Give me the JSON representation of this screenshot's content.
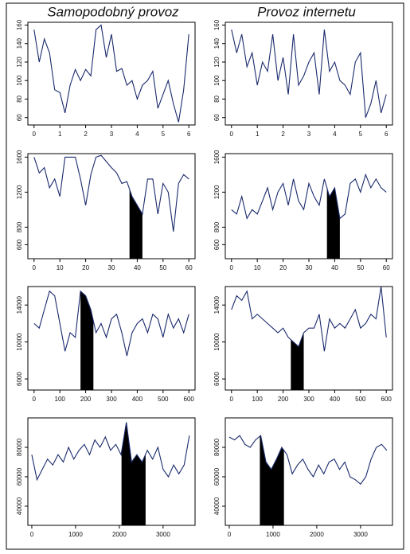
{
  "column_titles": [
    "Samopodobný provoz",
    "Provoz internetu"
  ],
  "chart_data": [
    {
      "type": "line",
      "xlim": [
        -0.24,
        6.24
      ],
      "ylim": [
        52,
        163
      ],
      "xticks": [
        0,
        1,
        2,
        3,
        4,
        5,
        6
      ],
      "yticks": [
        60,
        80,
        100,
        120,
        140,
        160
      ],
      "x": [
        0,
        0.2,
        0.4,
        0.6,
        0.8,
        1,
        1.2,
        1.4,
        1.6,
        1.8,
        2,
        2.2,
        2.4,
        2.6,
        2.8,
        3,
        3.2,
        3.4,
        3.6,
        3.8,
        4,
        4.2,
        4.4,
        4.6,
        4.8,
        5,
        5.2,
        5.4,
        5.6,
        5.8,
        6
      ],
      "values": [
        155,
        120,
        145,
        130,
        90,
        87,
        65,
        95,
        112,
        100,
        112,
        105,
        155,
        160,
        125,
        150,
        110,
        113,
        95,
        100,
        80,
        95,
        100,
        110,
        70,
        85,
        100,
        75,
        55,
        90,
        150
      ],
      "color": "#1a2a6c"
    },
    {
      "type": "line",
      "xlim": [
        -0.24,
        6.24
      ],
      "ylim": [
        52,
        163
      ],
      "xticks": [
        0,
        1,
        2,
        3,
        4,
        5,
        6
      ],
      "yticks": [
        60,
        80,
        100,
        120,
        140,
        160
      ],
      "x": [
        0,
        0.2,
        0.4,
        0.6,
        0.8,
        1,
        1.2,
        1.4,
        1.6,
        1.8,
        2,
        2.2,
        2.4,
        2.6,
        2.8,
        3,
        3.2,
        3.4,
        3.6,
        3.8,
        4,
        4.2,
        4.4,
        4.6,
        4.8,
        5,
        5.2,
        5.4,
        5.6,
        5.8,
        6
      ],
      "values": [
        155,
        130,
        150,
        115,
        130,
        95,
        120,
        110,
        150,
        100,
        125,
        85,
        150,
        95,
        105,
        120,
        130,
        85,
        155,
        110,
        120,
        100,
        95,
        85,
        120,
        130,
        60,
        75,
        100,
        65,
        85
      ],
      "color": "#1a2a6c"
    },
    {
      "type": "line",
      "xlim": [
        -2.4,
        62.4
      ],
      "ylim": [
        440,
        1640
      ],
      "xticks": [
        0,
        10,
        20,
        30,
        40,
        50,
        60
      ],
      "yticks": [
        600,
        800,
        1200,
        1600
      ],
      "highlight": [
        37,
        42
      ],
      "x": [
        0,
        2,
        4,
        6,
        8,
        10,
        12,
        14,
        16,
        18,
        20,
        22,
        24,
        26,
        28,
        30,
        32,
        34,
        36,
        38,
        40,
        42,
        44,
        46,
        48,
        50,
        52,
        54,
        56,
        58,
        60
      ],
      "values": [
        1600,
        1420,
        1480,
        1250,
        1350,
        1150,
        1600,
        1600,
        1600,
        1350,
        1050,
        1400,
        1600,
        1620,
        1550,
        1480,
        1420,
        1300,
        1320,
        1150,
        1050,
        950,
        1350,
        1350,
        950,
        1300,
        1200,
        750,
        1300,
        1400,
        1350
      ],
      "color": "#1a2a6c"
    },
    {
      "type": "line",
      "xlim": [
        -2.4,
        62.4
      ],
      "ylim": [
        440,
        1640
      ],
      "xticks": [
        0,
        10,
        20,
        30,
        40,
        50,
        60
      ],
      "yticks": [
        600,
        800,
        1200,
        1600
      ],
      "highlight": [
        37,
        42
      ],
      "x": [
        0,
        2,
        4,
        6,
        8,
        10,
        12,
        14,
        16,
        18,
        20,
        22,
        24,
        26,
        28,
        30,
        32,
        34,
        36,
        38,
        40,
        42,
        44,
        46,
        48,
        50,
        52,
        54,
        56,
        58,
        60
      ],
      "values": [
        1000,
        950,
        1150,
        900,
        1000,
        950,
        1100,
        1250,
        1000,
        1200,
        1300,
        1050,
        1350,
        1100,
        1000,
        1300,
        1150,
        1050,
        1350,
        1150,
        1250,
        900,
        950,
        1300,
        1350,
        1200,
        1400,
        1250,
        1350,
        1250,
        1200
      ],
      "color": "#1a2a6c"
    },
    {
      "type": "line",
      "xlim": [
        -24,
        624
      ],
      "ylim": [
        4800,
        16000
      ],
      "xticks": [
        0,
        100,
        200,
        300,
        400,
        500,
        600
      ],
      "yticks": [
        6000,
        10000,
        14000
      ],
      "highlight": [
        180,
        230
      ],
      "x": [
        0,
        20,
        40,
        60,
        80,
        100,
        120,
        140,
        160,
        180,
        200,
        220,
        240,
        260,
        280,
        300,
        320,
        340,
        360,
        380,
        400,
        420,
        440,
        460,
        480,
        500,
        520,
        540,
        560,
        580,
        600
      ],
      "values": [
        12000,
        11500,
        13500,
        15500,
        15000,
        12000,
        9000,
        11000,
        10500,
        15500,
        15000,
        13500,
        11000,
        12000,
        10500,
        12500,
        13000,
        11000,
        8500,
        11000,
        12000,
        12500,
        11000,
        13000,
        12500,
        10500,
        13000,
        11500,
        12500,
        11000,
        13000
      ],
      "color": "#1a2a6c"
    },
    {
      "type": "line",
      "xlim": [
        -24,
        624
      ],
      "ylim": [
        4800,
        16000
      ],
      "xticks": [
        0,
        100,
        200,
        300,
        400,
        500,
        600
      ],
      "yticks": [
        6000,
        10000,
        14000
      ],
      "highlight": [
        230,
        280
      ],
      "x": [
        0,
        20,
        40,
        60,
        80,
        100,
        120,
        140,
        160,
        180,
        200,
        220,
        240,
        260,
        280,
        300,
        320,
        340,
        360,
        380,
        400,
        420,
        440,
        460,
        480,
        500,
        520,
        540,
        560,
        580,
        600
      ],
      "values": [
        13500,
        15000,
        14500,
        15500,
        12500,
        13000,
        12500,
        12000,
        11500,
        11000,
        11500,
        10500,
        10000,
        9500,
        11000,
        11500,
        11500,
        13000,
        9000,
        12500,
        11500,
        12000,
        11500,
        12500,
        13500,
        11500,
        12000,
        13000,
        12500,
        16000,
        10500
      ],
      "color": "#1a2a6c"
    },
    {
      "type": "line",
      "xlim": [
        -90,
        3730
      ],
      "ylim": [
        27000,
        100000
      ],
      "xticks": [
        0,
        1000,
        2000,
        3000
      ],
      "yticks": [
        40000,
        60000,
        80000
      ],
      "highlight": [
        2050,
        2600
      ],
      "x": [
        0,
        120,
        240,
        360,
        480,
        600,
        720,
        840,
        960,
        1080,
        1200,
        1320,
        1440,
        1560,
        1680,
        1800,
        1920,
        2040,
        2160,
        2280,
        2400,
        2520,
        2640,
        2760,
        2880,
        3000,
        3120,
        3240,
        3360,
        3480,
        3600
      ],
      "values": [
        75000,
        58000,
        65000,
        72000,
        68000,
        75000,
        70000,
        80000,
        72000,
        78000,
        82000,
        75000,
        85000,
        80000,
        87000,
        78000,
        82000,
        75000,
        97000,
        70000,
        75000,
        70000,
        78000,
        72000,
        80000,
        65000,
        60000,
        68000,
        62000,
        68000,
        88000
      ],
      "color": "#1a2a6c"
    },
    {
      "type": "line",
      "xlim": [
        -90,
        3730
      ],
      "ylim": [
        27000,
        100000
      ],
      "xticks": [
        0,
        1000,
        2000,
        3000
      ],
      "yticks": [
        40000,
        60000,
        80000
      ],
      "highlight": [
        700,
        1250
      ],
      "x": [
        0,
        120,
        240,
        360,
        480,
        600,
        720,
        840,
        960,
        1080,
        1200,
        1320,
        1440,
        1560,
        1680,
        1800,
        1920,
        2040,
        2160,
        2280,
        2400,
        2520,
        2640,
        2760,
        2880,
        3000,
        3120,
        3240,
        3360,
        3480,
        3600
      ],
      "values": [
        87000,
        85000,
        88000,
        82000,
        80000,
        85000,
        88000,
        70000,
        65000,
        72000,
        80000,
        75000,
        62000,
        68000,
        72000,
        65000,
        60000,
        68000,
        62000,
        70000,
        72000,
        65000,
        70000,
        60000,
        58000,
        55000,
        60000,
        72000,
        80000,
        82000,
        78000
      ],
      "color": "#1a2a6c"
    }
  ]
}
